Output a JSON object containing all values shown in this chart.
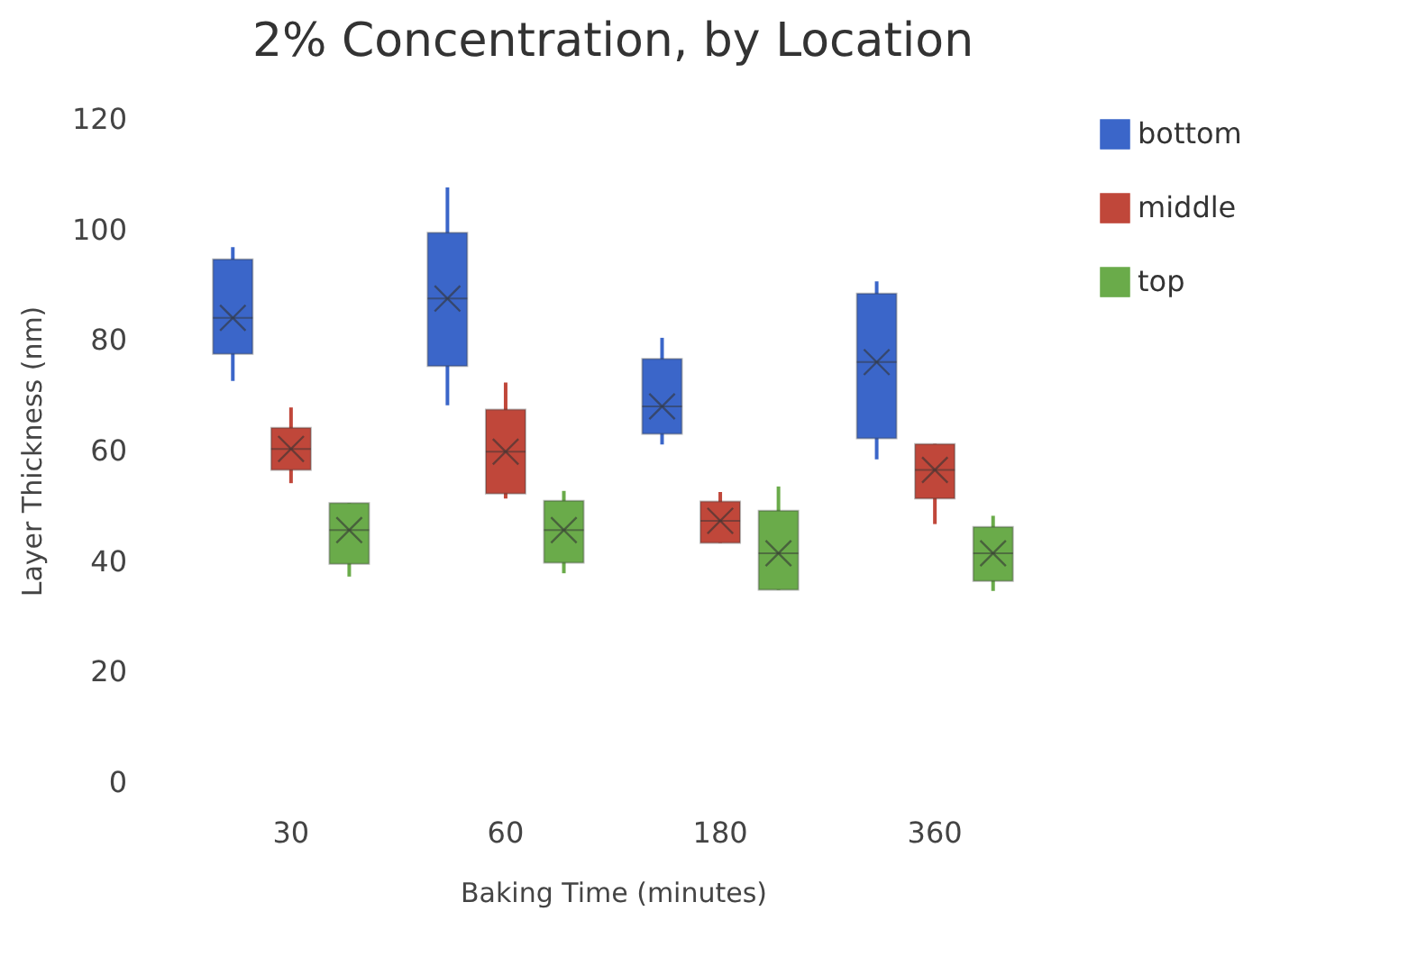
{
  "chart_data": {
    "type": "box",
    "title": "2% Concentration, by Location",
    "xlabel": "Baking Time (minutes)",
    "ylabel": "Layer Thickness (nm)",
    "categories": [
      "30",
      "60",
      "180",
      "360"
    ],
    "ylim": [
      0,
      120
    ],
    "yticks": [
      0,
      20,
      40,
      60,
      80,
      100,
      120
    ],
    "grid": false,
    "legend": "right",
    "series": [
      {
        "name": "bottom",
        "color": "#3b66c9",
        "boxes": [
          {
            "low": 72.6,
            "q1": 77.5,
            "median": 84,
            "q3": 94.6,
            "high": 96.8,
            "mean": 84
          },
          {
            "low": 68.2,
            "q1": 75.3,
            "median": 87.5,
            "q3": 99.4,
            "high": 107.6,
            "mean": 87.5
          },
          {
            "low": 61.1,
            "q1": 63,
            "median": 68,
            "q3": 76.6,
            "high": 80.4,
            "mean": 68
          },
          {
            "low": 58.4,
            "q1": 62.2,
            "median": 76,
            "q3": 88.4,
            "high": 90.6,
            "mean": 76
          }
        ]
      },
      {
        "name": "middle",
        "color": "#c0473a",
        "boxes": [
          {
            "low": 54.1,
            "q1": 56.5,
            "median": 60.3,
            "q3": 64.1,
            "high": 67.8,
            "mean": 60.3
          },
          {
            "low": 51.3,
            "q1": 52.2,
            "median": 59.8,
            "q3": 67.4,
            "high": 72.3,
            "mean": 59.8
          },
          {
            "low": 43.3,
            "q1": 43.3,
            "median": 47.3,
            "q3": 50.8,
            "high": 52.5,
            "mean": 47.3
          },
          {
            "low": 46.7,
            "q1": 51.3,
            "median": 56.5,
            "q3": 61.2,
            "high": 61.2,
            "mean": 56.5
          }
        ]
      },
      {
        "name": "top",
        "color": "#6aab4a",
        "boxes": [
          {
            "low": 37.2,
            "q1": 39.5,
            "median": 45.6,
            "q3": 50.5,
            "high": 50.5,
            "mean": 45.6
          },
          {
            "low": 37.8,
            "q1": 39.7,
            "median": 45.6,
            "q3": 50.9,
            "high": 52.7,
            "mean": 45.6
          },
          {
            "low": 34.8,
            "q1": 34.8,
            "median": 41.4,
            "q3": 49.1,
            "high": 53.5,
            "mean": 41.4
          },
          {
            "low": 34.6,
            "q1": 36.4,
            "median": 41.4,
            "q3": 46.2,
            "high": 48.2,
            "mean": 41.4
          }
        ]
      }
    ]
  }
}
